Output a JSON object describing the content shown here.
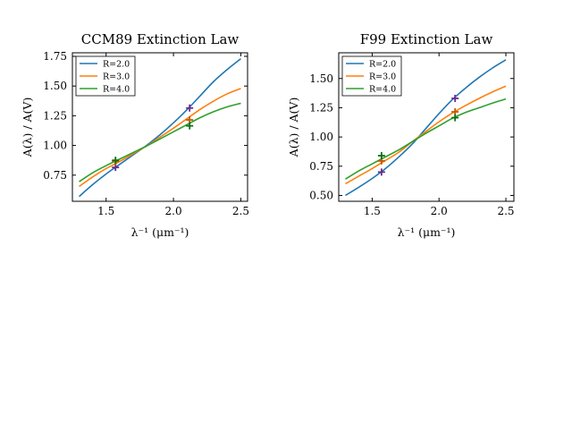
{
  "chart_data": [
    {
      "type": "line",
      "title": "CCM89 Extinction Law",
      "xlabel": "λ⁻¹ (μm⁻¹)",
      "ylabel": "A(λ) / A(V)",
      "xlim": [
        1.25,
        2.55
      ],
      "ylim": [
        0.53,
        1.78
      ],
      "xticks": [
        1.5,
        2.0,
        2.5
      ],
      "xtick_labels": [
        "1.5",
        "2.0",
        "2.5"
      ],
      "yticks": [
        0.75,
        1.0,
        1.25,
        1.5,
        1.75
      ],
      "ytick_labels": [
        "0.75",
        "1.00",
        "1.25",
        "1.50",
        "1.75"
      ],
      "grid": false,
      "legend": "top-left",
      "x": [
        1.3,
        1.4,
        1.5,
        1.6,
        1.7,
        1.8,
        1.9,
        2.0,
        2.1,
        2.2,
        2.3,
        2.4,
        2.5
      ],
      "series": [
        {
          "name": "R=2.0",
          "color": "#1f77b4",
          "values": [
            0.57,
            0.67,
            0.76,
            0.84,
            0.92,
            1.0,
            1.09,
            1.19,
            1.3,
            1.42,
            1.54,
            1.64,
            1.73
          ]
        },
        {
          "name": "R=3.0",
          "color": "#ff7f0e",
          "values": [
            0.655,
            0.735,
            0.805,
            0.865,
            0.93,
            0.995,
            1.07,
            1.145,
            1.225,
            1.305,
            1.375,
            1.435,
            1.48
          ]
        },
        {
          "name": "R=4.0",
          "color": "#2ca02c",
          "values": [
            0.695,
            0.77,
            0.83,
            0.885,
            0.94,
            0.995,
            1.055,
            1.115,
            1.175,
            1.235,
            1.285,
            1.325,
            1.355
          ]
        }
      ],
      "markers": [
        {
          "series": "R=2.0",
          "points": [
            [
              1.57,
              0.815
            ],
            [
              2.12,
              1.315
            ]
          ]
        },
        {
          "series": "R=3.0",
          "points": [
            [
              1.57,
              0.865
            ],
            [
              2.12,
              1.215
            ]
          ]
        },
        {
          "series": "R=4.0",
          "points": [
            [
              1.57,
              0.875
            ],
            [
              2.12,
              1.165
            ]
          ]
        }
      ],
      "marker_colors": [
        "#6a2c8a",
        "#c05a0a",
        "#107010"
      ]
    },
    {
      "type": "line",
      "title": "F99 Extinction Law",
      "xlabel": "λ⁻¹ (μm⁻¹)",
      "ylabel": "A(λ) / A(V)",
      "xlim": [
        1.25,
        2.56
      ],
      "ylim": [
        0.45,
        1.72
      ],
      "xticks": [
        1.5,
        2.0,
        2.5
      ],
      "xtick_labels": [
        "1.5",
        "2.0",
        "2.5"
      ],
      "yticks": [
        0.5,
        0.75,
        1.0,
        1.25,
        1.5
      ],
      "ytick_labels": [
        "0.50",
        "0.75",
        "1.00",
        "1.25",
        "1.50"
      ],
      "grid": false,
      "legend": "top-left",
      "x": [
        1.3,
        1.4,
        1.5,
        1.6,
        1.7,
        1.8,
        1.9,
        2.0,
        2.1,
        2.2,
        2.3,
        2.4,
        2.5
      ],
      "series": [
        {
          "name": "R=2.0",
          "color": "#1f77b4",
          "values": [
            0.5,
            0.57,
            0.645,
            0.73,
            0.83,
            0.94,
            1.07,
            1.2,
            1.32,
            1.42,
            1.51,
            1.59,
            1.66
          ]
        },
        {
          "name": "R=3.0",
          "color": "#ff7f0e",
          "values": [
            0.6,
            0.665,
            0.73,
            0.8,
            0.87,
            0.96,
            1.045,
            1.13,
            1.205,
            1.27,
            1.33,
            1.385,
            1.435
          ]
        },
        {
          "name": "R=4.0",
          "color": "#2ca02c",
          "values": [
            0.64,
            0.71,
            0.77,
            0.83,
            0.89,
            0.96,
            1.03,
            1.095,
            1.16,
            1.21,
            1.25,
            1.29,
            1.325
          ]
        }
      ],
      "markers": [
        {
          "series": "R=2.0",
          "points": [
            [
              1.57,
              0.7
            ],
            [
              2.12,
              1.33
            ]
          ]
        },
        {
          "series": "R=3.0",
          "points": [
            [
              1.57,
              0.795
            ],
            [
              2.12,
              1.215
            ]
          ]
        },
        {
          "series": "R=4.0",
          "points": [
            [
              1.57,
              0.84
            ],
            [
              2.12,
              1.165
            ]
          ]
        }
      ],
      "marker_colors": [
        "#6a2c8a",
        "#c05a0a",
        "#107010"
      ]
    }
  ]
}
